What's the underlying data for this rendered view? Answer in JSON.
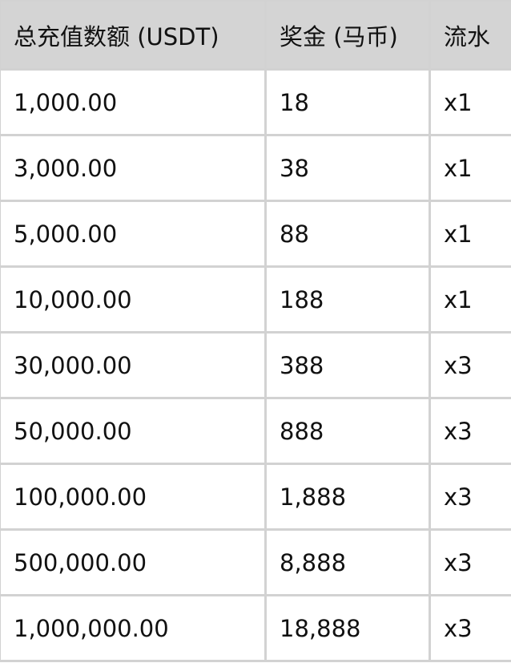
{
  "table": {
    "headers": [
      "总充值数额 (USDT)",
      "奖金 (马币)",
      "流水"
    ],
    "rows": [
      [
        "1,000.00",
        "18",
        "x1"
      ],
      [
        "3,000.00",
        "38",
        "x1"
      ],
      [
        "5,000.00",
        "88",
        "x1"
      ],
      [
        "10,000.00",
        "188",
        "x1"
      ],
      [
        "30,000.00",
        "388",
        "x3"
      ],
      [
        "50,000.00",
        "888",
        "x3"
      ],
      [
        "100,000.00",
        "1,888",
        "x3"
      ],
      [
        "500,000.00",
        "8,888",
        "x3"
      ],
      [
        "1,000,000.00",
        "18,888",
        "x3"
      ]
    ]
  },
  "colors": {
    "header_bg": "#d4d4d4",
    "border": "#d2d2d2"
  }
}
